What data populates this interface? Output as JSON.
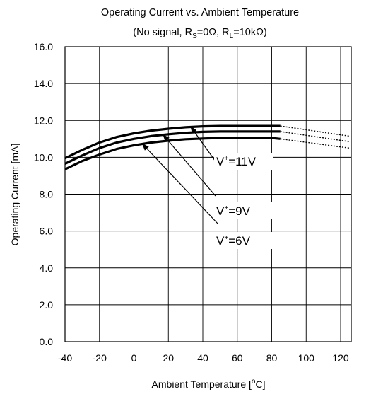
{
  "chart_data": {
    "type": "line",
    "title": "Operating Current vs. Ambient Temperature",
    "subtitle": {
      "open": "(No signal, R",
      "rs_sub": "S",
      "mid": "=0Ω, R",
      "rl_sub": "L",
      "close": "=10kΩ)"
    },
    "xlabel": {
      "main": "Ambient Temperature [",
      "sup": "o",
      "tail": "C]"
    },
    "ylabel": "Operating Current [mA]",
    "xlim": [
      -40,
      125
    ],
    "ylim": [
      0,
      16
    ],
    "xticks": [
      "-40",
      "-20",
      "0",
      "20",
      "40",
      "60",
      "80",
      "100",
      "120"
    ],
    "yticks": [
      "0.0",
      "2.0",
      "4.0",
      "6.0",
      "8.0",
      "10.0",
      "12.0",
      "14.0",
      "16.0"
    ],
    "grid": true,
    "series": [
      {
        "name": "11V",
        "x": [
          -40,
          -30,
          -20,
          -10,
          0,
          10,
          20,
          30,
          40,
          50,
          60,
          70,
          80,
          85
        ],
        "y": [
          9.95,
          10.4,
          10.8,
          11.1,
          11.3,
          11.45,
          11.55,
          11.63,
          11.68,
          11.7,
          11.7,
          11.7,
          11.7,
          11.7
        ],
        "extrapolated": {
          "x": [
            85,
            125
          ],
          "y": [
            11.7,
            11.15
          ]
        }
      },
      {
        "name": "9V",
        "x": [
          -40,
          -30,
          -20,
          -10,
          0,
          10,
          20,
          30,
          40,
          50,
          60,
          70,
          80,
          85
        ],
        "y": [
          9.65,
          10.1,
          10.5,
          10.8,
          11.0,
          11.15,
          11.25,
          11.33,
          11.38,
          11.4,
          11.4,
          11.4,
          11.4,
          11.4
        ],
        "extrapolated": {
          "x": [
            85,
            125
          ],
          "y": [
            11.4,
            10.85
          ]
        }
      },
      {
        "name": "6V",
        "x": [
          -40,
          -30,
          -20,
          -10,
          0,
          10,
          20,
          30,
          40,
          50,
          60,
          70,
          80,
          85
        ],
        "y": [
          9.35,
          9.8,
          10.15,
          10.45,
          10.65,
          10.8,
          10.9,
          10.98,
          11.02,
          11.05,
          11.05,
          11.05,
          11.05,
          11.0
        ],
        "extrapolated": {
          "x": [
            85,
            125
          ],
          "y": [
            11.0,
            10.5
          ]
        }
      }
    ],
    "annotations": [
      {
        "prefix": "V",
        "sup": "+",
        "value": "=11V",
        "series": "11V",
        "arrow_to": [
          33,
          11.66
        ]
      },
      {
        "prefix": "V",
        "sup": "+",
        "value": "=9V",
        "series": "9V",
        "arrow_to": [
          17,
          11.22
        ]
      },
      {
        "prefix": "V",
        "sup": "+",
        "value": "=6V",
        "series": "6V",
        "arrow_to": [
          5,
          10.72
        ]
      }
    ]
  }
}
